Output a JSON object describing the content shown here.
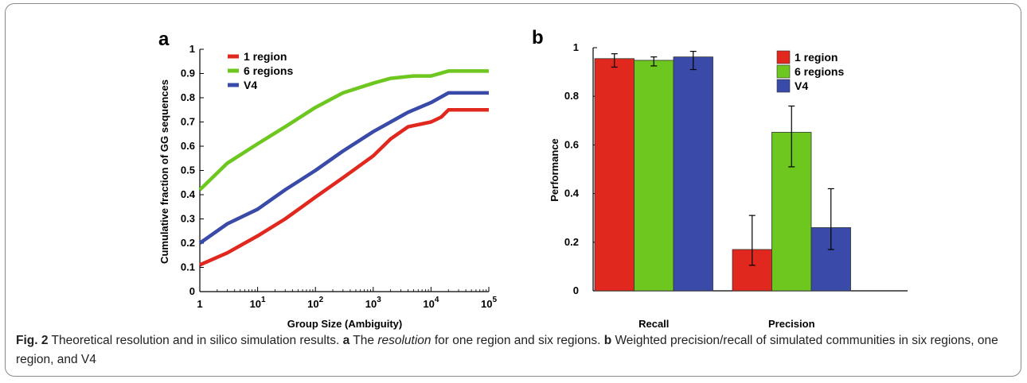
{
  "chart_data": [
    {
      "panel": "a",
      "type": "line",
      "xlabel": "Group Size (Ambiguity)",
      "ylabel": "Cumulative fraction of GG sequences",
      "xscale": "log",
      "xlim": [
        1,
        100000
      ],
      "ylim": [
        0,
        1
      ],
      "x_ticks": [
        {
          "value": 1,
          "base": "1",
          "exp": ""
        },
        {
          "value": 10,
          "base": "10",
          "exp": "1"
        },
        {
          "value": 100,
          "base": "10",
          "exp": "2"
        },
        {
          "value": 1000,
          "base": "10",
          "exp": "3"
        },
        {
          "value": 10000,
          "base": "10",
          "exp": "4"
        },
        {
          "value": 100000,
          "base": "10",
          "exp": "5"
        }
      ],
      "y_ticks": [
        "0",
        "0.1",
        "0.2",
        "0.3",
        "0.4",
        "0.5",
        "0.6",
        "0.7",
        "0.8",
        "0.9",
        "1"
      ],
      "legend_position": "top-left",
      "series": [
        {
          "name": "1 region",
          "color": "#e0281e",
          "x": [
            1,
            3,
            10,
            30,
            100,
            300,
            1000,
            2000,
            4000,
            10000,
            15000,
            20000,
            100000
          ],
          "y": [
            0.11,
            0.16,
            0.23,
            0.3,
            0.39,
            0.47,
            0.56,
            0.63,
            0.68,
            0.7,
            0.72,
            0.75,
            0.75
          ]
        },
        {
          "name": "6 regions",
          "color": "#6dc71e",
          "x": [
            1,
            3,
            10,
            30,
            100,
            300,
            1000,
            2000,
            5000,
            10000,
            20000,
            100000
          ],
          "y": [
            0.42,
            0.53,
            0.61,
            0.68,
            0.76,
            0.82,
            0.86,
            0.88,
            0.89,
            0.89,
            0.91,
            0.91
          ],
          "line_style": "solid"
        },
        {
          "name": "V4",
          "color": "#3a4aa8",
          "x": [
            1,
            3,
            10,
            30,
            100,
            300,
            1000,
            2000,
            4000,
            10000,
            20000,
            100000
          ],
          "y": [
            0.2,
            0.28,
            0.34,
            0.42,
            0.5,
            0.58,
            0.66,
            0.7,
            0.74,
            0.78,
            0.82,
            0.82
          ]
        }
      ]
    },
    {
      "panel": "b",
      "type": "bar",
      "ylabel": "Performance",
      "ylim": [
        0,
        1
      ],
      "y_ticks": [
        "0",
        "0.2",
        "0.4",
        "0.6",
        "0.8",
        "1"
      ],
      "categories": [
        "Recall",
        "Precision"
      ],
      "legend_position": "top-right",
      "series": [
        {
          "name": "1 region",
          "color": "#e0281e",
          "values": [
            0.955,
            0.17
          ],
          "err_low": [
            0.92,
            0.105
          ],
          "err_high": [
            0.975,
            0.31
          ]
        },
        {
          "name": "6 regions",
          "color": "#6dc71e",
          "values": [
            0.948,
            0.652
          ],
          "err_low": [
            0.925,
            0.51
          ],
          "err_high": [
            0.962,
            0.76
          ]
        },
        {
          "name": "V4",
          "color": "#3a4aa8",
          "values": [
            0.962,
            0.26
          ],
          "err_low": [
            0.91,
            0.17
          ],
          "err_high": [
            0.985,
            0.42
          ]
        }
      ]
    }
  ],
  "caption": {
    "fig": "Fig. 2",
    "text1": " Theoretical resolution and in silico simulation results. ",
    "a": "a",
    "text2": " The ",
    "italic": "resolution",
    "text3": " for one region and six regions. ",
    "b": "b",
    "text4": " Weighted precision/recall of simulated communities in six regions, one region, and V4"
  }
}
